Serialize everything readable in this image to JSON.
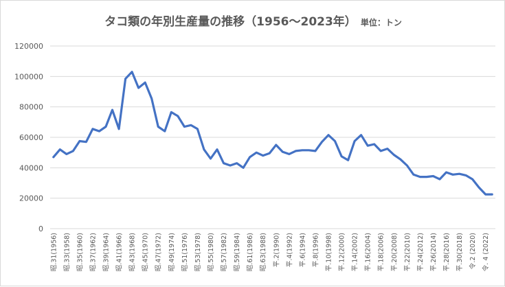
{
  "chart_data": {
    "type": "line",
    "title": "タコ類の年別生産量の推移（1956〜2023年）",
    "subtitle": "単位：トン",
    "ylim": [
      0,
      120000
    ],
    "yticks": [
      0,
      20000,
      40000,
      60000,
      80000,
      100000,
      120000
    ],
    "grid": true,
    "legend": "none",
    "series_color": "#4472c4",
    "x": [
      1956,
      1957,
      1958,
      1959,
      1960,
      1961,
      1962,
      1963,
      1964,
      1965,
      1966,
      1967,
      1968,
      1969,
      1970,
      1971,
      1972,
      1973,
      1974,
      1975,
      1976,
      1977,
      1978,
      1979,
      1980,
      1981,
      1982,
      1983,
      1984,
      1985,
      1986,
      1987,
      1988,
      1989,
      1990,
      1991,
      1992,
      1993,
      1994,
      1995,
      1996,
      1997,
      1998,
      1999,
      2000,
      2001,
      2002,
      2003,
      2004,
      2005,
      2006,
      2007,
      2008,
      2009,
      2010,
      2011,
      2012,
      2013,
      2014,
      2015,
      2016,
      2017,
      2018,
      2019,
      2020,
      2021,
      2022,
      2023
    ],
    "values": [
      47000,
      52000,
      49000,
      51000,
      57500,
      57000,
      65500,
      64000,
      67000,
      78000,
      65500,
      98500,
      103000,
      92500,
      96000,
      85500,
      67000,
      64000,
      76500,
      74000,
      67000,
      68000,
      65500,
      52000,
      46000,
      52000,
      43000,
      41500,
      43000,
      40000,
      47000,
      50000,
      48000,
      49500,
      55000,
      50500,
      49000,
      51000,
      51500,
      51500,
      51000,
      57000,
      61500,
      57500,
      47500,
      45000,
      57500,
      61500,
      54500,
      55500,
      51000,
      52500,
      48500,
      45500,
      41500,
      35500,
      34000,
      34000,
      34500,
      32500,
      37000,
      35500,
      36000,
      35000,
      32500,
      27000,
      22500,
      22500
    ],
    "x_tick_labels": [
      "昭.31(1956)",
      "昭.33(1958)",
      "昭.35(1960)",
      "昭.37(1962)",
      "昭.39(1964)",
      "昭.41(1966)",
      "昭.43(1968)",
      "昭.45(1970)",
      "昭.47(1972)",
      "昭.49(1974)",
      "昭.51(1976)",
      "昭.53(1978)",
      "昭.55(1980)",
      "昭.57(1982)",
      "昭.59(1984)",
      "昭.61(1986)",
      "昭.63(1988)",
      "平.2(1990)",
      "平.4(1992)",
      "平.6(1994)",
      "平.8(1996)",
      "平.10(1998)",
      "平.12(2000)",
      "平.14(2002)",
      "平.16(2004)",
      "平.18(2006)",
      "平.20(2008)",
      "平.22(2010)",
      "平.24(2012)",
      "平.26(2014)",
      "平.28(2016)",
      "平.30(2018)",
      "令.2 (2020)",
      "令. 4 (2022)"
    ],
    "y_tick_labels": [
      "0",
      "20000",
      "40000",
      "60000",
      "80000",
      "100000",
      "120000"
    ]
  }
}
